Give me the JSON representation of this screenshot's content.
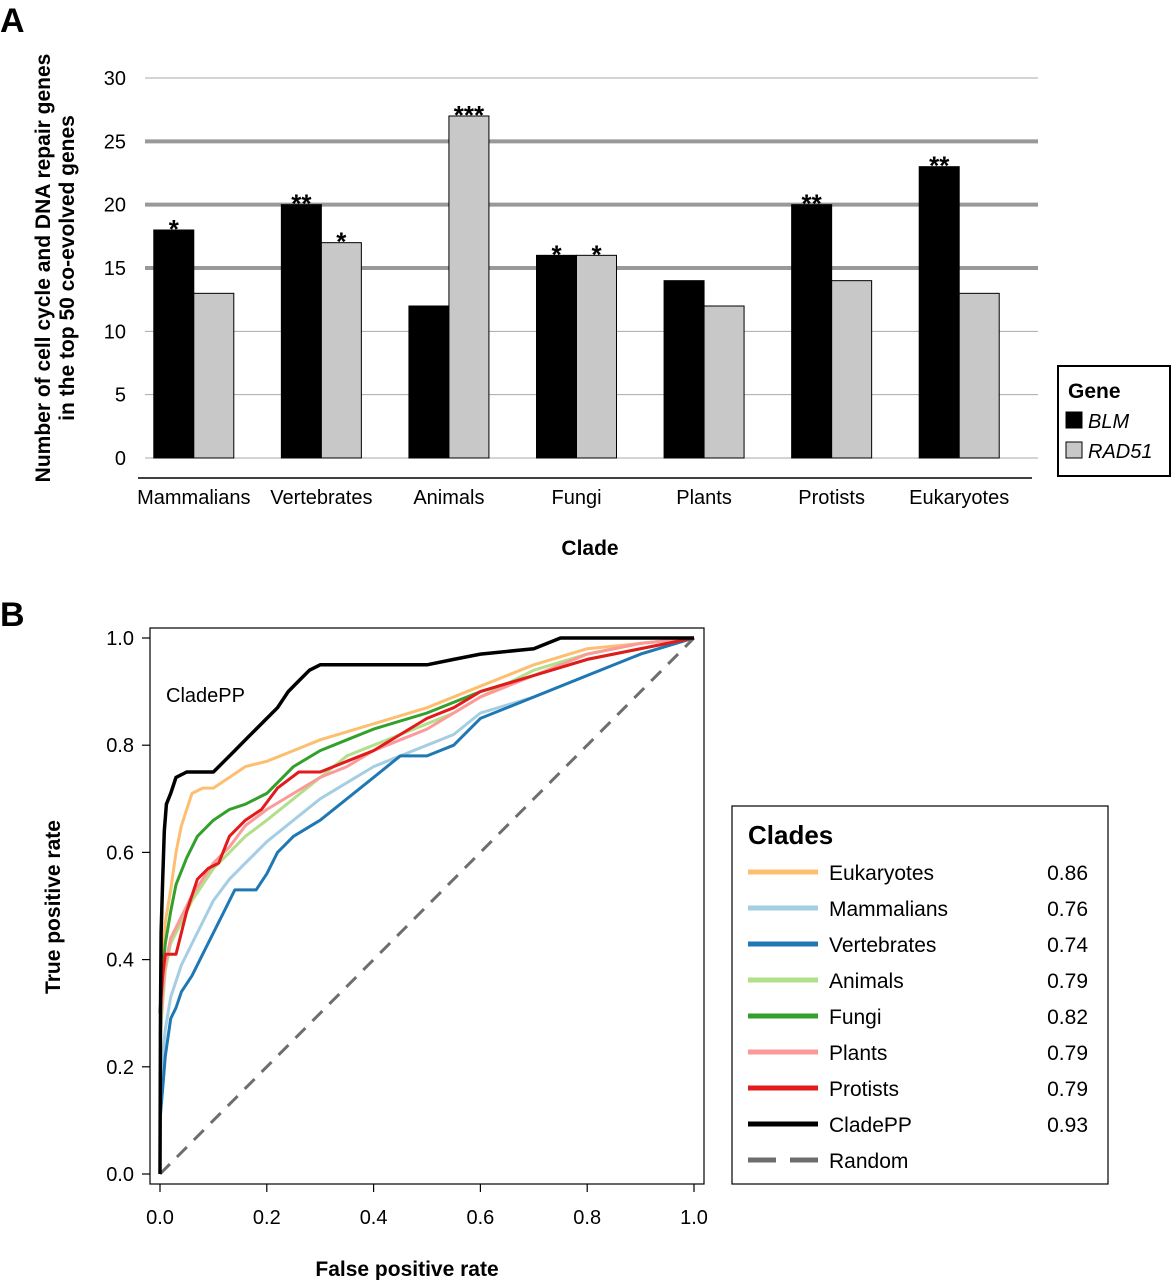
{
  "panel_a_label": "A",
  "panel_b_label": "B",
  "colors": {
    "blm": "#000000",
    "rad51": "#c8c8c8",
    "threshold": "#999999",
    "grid": "#aaaaaa",
    "random": "#6e6e6e"
  },
  "chart_data": [
    {
      "type": "bar",
      "panel": "A",
      "title": "",
      "xlabel": "Clade",
      "ylabel_line1": "Number of cell cycle and DNA repair genes",
      "ylabel_line2": "in the top 50 co-evolved genes",
      "ylim": [
        0,
        30
      ],
      "yticks": [
        "0",
        "5",
        "10",
        "15",
        "20",
        "25",
        "30"
      ],
      "threshold_lines": [
        15,
        20,
        25
      ],
      "categories": [
        "Mammalians",
        "Vertebrates",
        "Animals",
        "Fungi",
        "Plants",
        "Protists",
        "Eukaryotes"
      ],
      "series": [
        {
          "name": "BLM",
          "values": [
            18,
            20,
            12,
            16,
            14,
            20,
            23
          ],
          "significance": [
            "*",
            "**",
            "",
            "*",
            "",
            "**",
            "**"
          ]
        },
        {
          "name": "RAD51",
          "values": [
            13,
            17,
            27,
            16,
            12,
            14,
            13
          ],
          "significance": [
            "",
            "*",
            "***",
            "*",
            "",
            "",
            ""
          ]
        }
      ],
      "legend": {
        "title": "Gene",
        "items": [
          "BLM",
          "RAD51"
        ],
        "position": "right"
      }
    },
    {
      "type": "line",
      "panel": "B",
      "xlabel": "False positive rate",
      "ylabel": "True positive rate",
      "xlim": [
        0,
        1
      ],
      "ylim": [
        0,
        1
      ],
      "xticks": [
        "0.0",
        "0.2",
        "0.4",
        "0.6",
        "0.8",
        "1.0"
      ],
      "yticks": [
        "0.0",
        "0.2",
        "0.4",
        "0.6",
        "0.8",
        "1.0"
      ],
      "annotation": "CladePP",
      "legend": {
        "title": "Clades",
        "position": "right"
      },
      "series": [
        {
          "name": "Eukaryotes",
          "auc": "0.86",
          "color": "#fdbf6f",
          "width": 3,
          "points": [
            [
              0,
              0.3
            ],
            [
              0.005,
              0.42
            ],
            [
              0.01,
              0.47
            ],
            [
              0.02,
              0.53
            ],
            [
              0.03,
              0.6
            ],
            [
              0.04,
              0.65
            ],
            [
              0.06,
              0.71
            ],
            [
              0.08,
              0.72
            ],
            [
              0.1,
              0.72
            ],
            [
              0.13,
              0.74
            ],
            [
              0.16,
              0.76
            ],
            [
              0.2,
              0.77
            ],
            [
              0.25,
              0.79
            ],
            [
              0.3,
              0.81
            ],
            [
              0.4,
              0.84
            ],
            [
              0.5,
              0.87
            ],
            [
              0.6,
              0.91
            ],
            [
              0.7,
              0.95
            ],
            [
              0.8,
              0.98
            ],
            [
              0.9,
              0.99
            ],
            [
              1,
              1
            ]
          ]
        },
        {
          "name": "Mammalians",
          "auc": "0.76",
          "color": "#a6cee3",
          "width": 3,
          "points": [
            [
              0,
              0.16
            ],
            [
              0.005,
              0.22
            ],
            [
              0.01,
              0.27
            ],
            [
              0.02,
              0.33
            ],
            [
              0.04,
              0.39
            ],
            [
              0.06,
              0.43
            ],
            [
              0.08,
              0.47
            ],
            [
              0.1,
              0.51
            ],
            [
              0.13,
              0.55
            ],
            [
              0.16,
              0.58
            ],
            [
              0.2,
              0.62
            ],
            [
              0.25,
              0.66
            ],
            [
              0.3,
              0.7
            ],
            [
              0.35,
              0.73
            ],
            [
              0.4,
              0.76
            ],
            [
              0.45,
              0.78
            ],
            [
              0.5,
              0.8
            ],
            [
              0.55,
              0.82
            ],
            [
              0.6,
              0.86
            ],
            [
              0.7,
              0.89
            ],
            [
              0.8,
              0.93
            ],
            [
              0.9,
              0.97
            ],
            [
              1,
              1
            ]
          ]
        },
        {
          "name": "Vertebrates",
          "auc": "0.74",
          "color": "#1f78b4",
          "width": 3,
          "points": [
            [
              0,
              0.1
            ],
            [
              0.005,
              0.16
            ],
            [
              0.01,
              0.22
            ],
            [
              0.02,
              0.29
            ],
            [
              0.03,
              0.31
            ],
            [
              0.04,
              0.34
            ],
            [
              0.06,
              0.37
            ],
            [
              0.08,
              0.41
            ],
            [
              0.1,
              0.45
            ],
            [
              0.12,
              0.49
            ],
            [
              0.14,
              0.53
            ],
            [
              0.16,
              0.53
            ],
            [
              0.18,
              0.53
            ],
            [
              0.2,
              0.56
            ],
            [
              0.22,
              0.6
            ],
            [
              0.25,
              0.63
            ],
            [
              0.3,
              0.66
            ],
            [
              0.35,
              0.7
            ],
            [
              0.4,
              0.74
            ],
            [
              0.45,
              0.78
            ],
            [
              0.5,
              0.78
            ],
            [
              0.55,
              0.8
            ],
            [
              0.6,
              0.85
            ],
            [
              0.7,
              0.89
            ],
            [
              0.8,
              0.93
            ],
            [
              0.9,
              0.97
            ],
            [
              1,
              1
            ]
          ]
        },
        {
          "name": "Animals",
          "auc": "0.79",
          "color": "#b2df8a",
          "width": 3,
          "points": [
            [
              0,
              0.25
            ],
            [
              0.005,
              0.32
            ],
            [
              0.01,
              0.38
            ],
            [
              0.02,
              0.43
            ],
            [
              0.04,
              0.47
            ],
            [
              0.06,
              0.51
            ],
            [
              0.08,
              0.54
            ],
            [
              0.1,
              0.57
            ],
            [
              0.13,
              0.6
            ],
            [
              0.16,
              0.63
            ],
            [
              0.2,
              0.66
            ],
            [
              0.25,
              0.7
            ],
            [
              0.3,
              0.74
            ],
            [
              0.35,
              0.78
            ],
            [
              0.4,
              0.8
            ],
            [
              0.45,
              0.82
            ],
            [
              0.5,
              0.84
            ],
            [
              0.55,
              0.86
            ],
            [
              0.6,
              0.89
            ],
            [
              0.7,
              0.94
            ],
            [
              0.8,
              0.97
            ],
            [
              0.9,
              0.99
            ],
            [
              1,
              1
            ]
          ]
        },
        {
          "name": "Fungi",
          "auc": "0.82",
          "color": "#33a02c",
          "width": 3,
          "points": [
            [
              0,
              0.3
            ],
            [
              0.005,
              0.38
            ],
            [
              0.01,
              0.43
            ],
            [
              0.02,
              0.49
            ],
            [
              0.03,
              0.54
            ],
            [
              0.05,
              0.59
            ],
            [
              0.07,
              0.63
            ],
            [
              0.1,
              0.66
            ],
            [
              0.13,
              0.68
            ],
            [
              0.16,
              0.69
            ],
            [
              0.2,
              0.71
            ],
            [
              0.25,
              0.76
            ],
            [
              0.3,
              0.79
            ],
            [
              0.35,
              0.81
            ],
            [
              0.4,
              0.83
            ],
            [
              0.5,
              0.86
            ],
            [
              0.6,
              0.9
            ],
            [
              0.7,
              0.93
            ],
            [
              0.8,
              0.96
            ],
            [
              0.9,
              0.98
            ],
            [
              1,
              1
            ]
          ]
        },
        {
          "name": "Plants",
          "auc": "0.79",
          "color": "#fb9a99",
          "width": 3,
          "points": [
            [
              0,
              0.26
            ],
            [
              0.005,
              0.34
            ],
            [
              0.01,
              0.39
            ],
            [
              0.02,
              0.44
            ],
            [
              0.04,
              0.48
            ],
            [
              0.06,
              0.52
            ],
            [
              0.08,
              0.55
            ],
            [
              0.1,
              0.58
            ],
            [
              0.13,
              0.61
            ],
            [
              0.16,
              0.65
            ],
            [
              0.2,
              0.68
            ],
            [
              0.25,
              0.71
            ],
            [
              0.3,
              0.74
            ],
            [
              0.35,
              0.76
            ],
            [
              0.4,
              0.79
            ],
            [
              0.45,
              0.81
            ],
            [
              0.5,
              0.83
            ],
            [
              0.55,
              0.86
            ],
            [
              0.6,
              0.89
            ],
            [
              0.7,
              0.93
            ],
            [
              0.8,
              0.97
            ],
            [
              0.9,
              0.99
            ],
            [
              1,
              1
            ]
          ]
        },
        {
          "name": "Protists",
          "auc": "0.79",
          "color": "#e31a1c",
          "width": 3,
          "points": [
            [
              0,
              0.3
            ],
            [
              0.005,
              0.37
            ],
            [
              0.01,
              0.41
            ],
            [
              0.03,
              0.41
            ],
            [
              0.05,
              0.49
            ],
            [
              0.07,
              0.55
            ],
            [
              0.09,
              0.57
            ],
            [
              0.11,
              0.58
            ],
            [
              0.13,
              0.63
            ],
            [
              0.16,
              0.66
            ],
            [
              0.19,
              0.68
            ],
            [
              0.22,
              0.72
            ],
            [
              0.26,
              0.75
            ],
            [
              0.3,
              0.75
            ],
            [
              0.35,
              0.77
            ],
            [
              0.4,
              0.79
            ],
            [
              0.45,
              0.82
            ],
            [
              0.5,
              0.85
            ],
            [
              0.55,
              0.87
            ],
            [
              0.6,
              0.9
            ],
            [
              0.7,
              0.93
            ],
            [
              0.8,
              0.96
            ],
            [
              0.9,
              0.98
            ],
            [
              1,
              1
            ]
          ]
        },
        {
          "name": "CladePP",
          "auc": "0.93",
          "color": "#000000",
          "width": 3.5,
          "points": [
            [
              0,
              0
            ],
            [
              0.001,
              0.3
            ],
            [
              0.002,
              0.45
            ],
            [
              0.005,
              0.55
            ],
            [
              0.008,
              0.64
            ],
            [
              0.012,
              0.69
            ],
            [
              0.02,
              0.71
            ],
            [
              0.03,
              0.74
            ],
            [
              0.05,
              0.75
            ],
            [
              0.1,
              0.75
            ],
            [
              0.12,
              0.77
            ],
            [
              0.14,
              0.79
            ],
            [
              0.16,
              0.81
            ],
            [
              0.18,
              0.83
            ],
            [
              0.2,
              0.85
            ],
            [
              0.22,
              0.87
            ],
            [
              0.24,
              0.9
            ],
            [
              0.26,
              0.92
            ],
            [
              0.28,
              0.94
            ],
            [
              0.3,
              0.95
            ],
            [
              0.4,
              0.95
            ],
            [
              0.5,
              0.95
            ],
            [
              0.55,
              0.96
            ],
            [
              0.6,
              0.97
            ],
            [
              0.7,
              0.98
            ],
            [
              0.75,
              1
            ],
            [
              0.8,
              1
            ],
            [
              0.9,
              1
            ],
            [
              1,
              1
            ]
          ]
        },
        {
          "name": "Random",
          "auc": "",
          "color": "#6e6e6e",
          "width": 3,
          "dashed": true,
          "points": [
            [
              0,
              0
            ],
            [
              1,
              1
            ]
          ]
        }
      ]
    }
  ]
}
